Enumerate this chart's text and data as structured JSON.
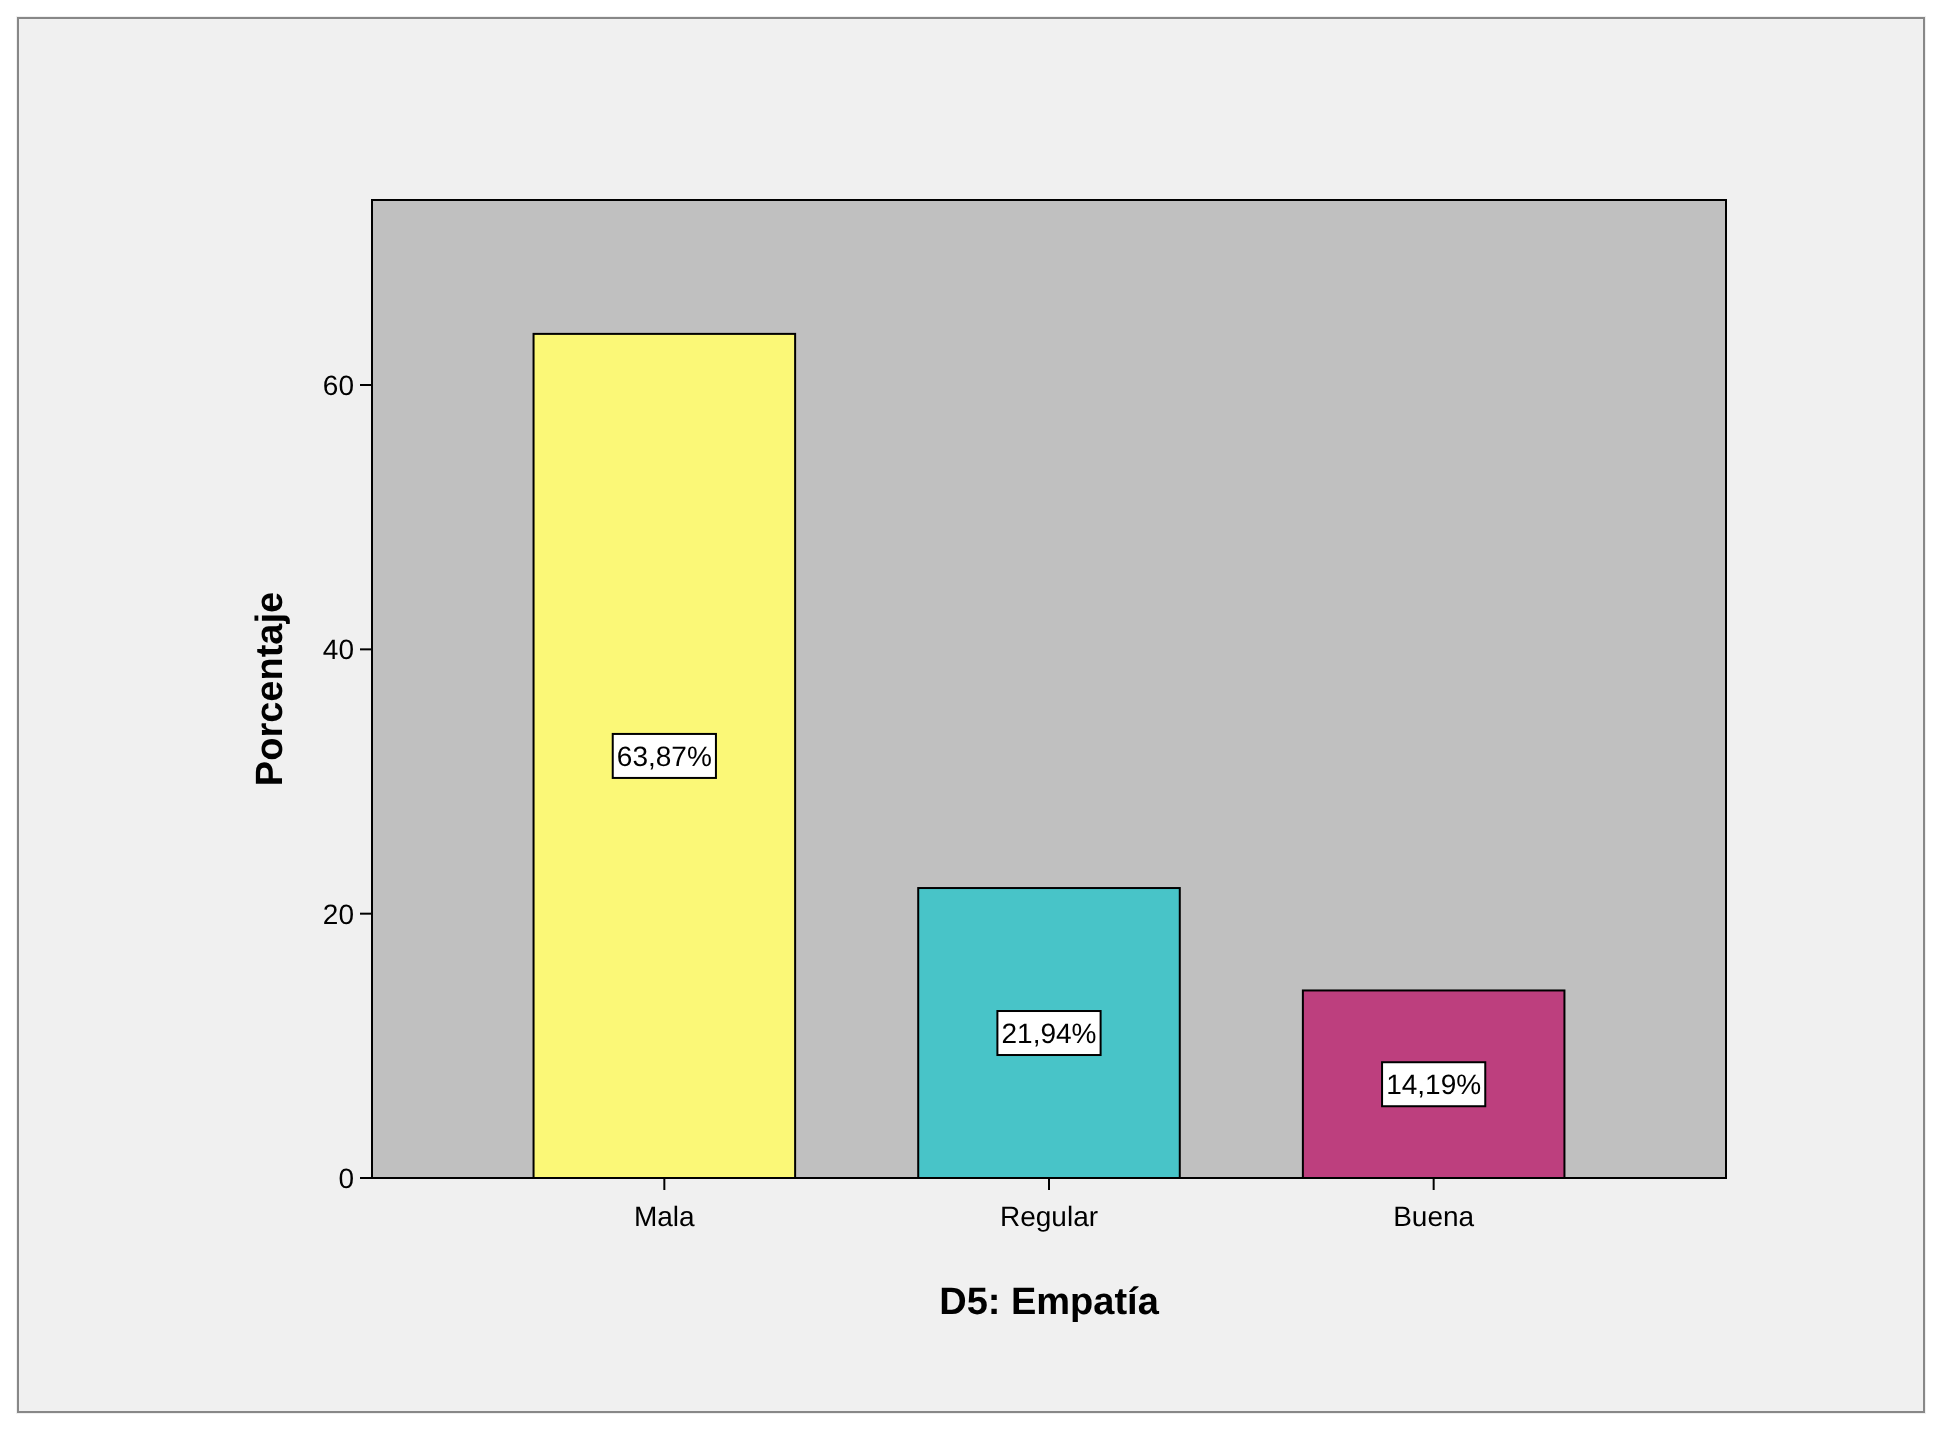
{
  "chart_data": {
    "type": "bar",
    "xlabel": "D5: Empatía",
    "ylabel": "Porcentaje",
    "categories": [
      "Mala",
      "Regular",
      "Buena"
    ],
    "values": [
      63.87,
      21.94,
      14.19
    ],
    "colors": [
      "#fbf877",
      "#48c4c8",
      "#bd3f7e"
    ],
    "value_labels": [
      "63,87%",
      "21,94%",
      "14,19%"
    ],
    "ylim": [
      0,
      74
    ],
    "yticks": [
      0,
      20,
      40,
      60
    ]
  }
}
